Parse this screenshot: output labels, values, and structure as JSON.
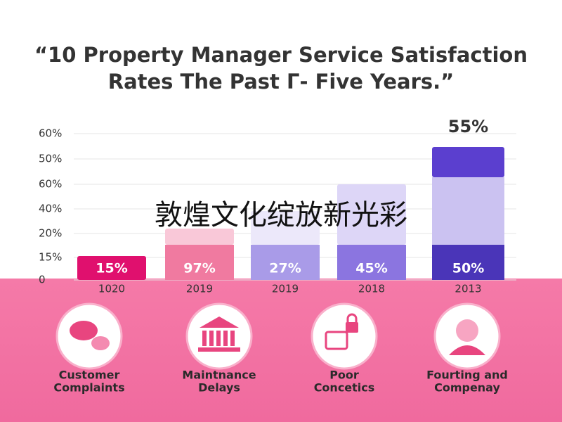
{
  "title": [
    "“10 Property Manager Service Satisfaction",
    "Rates The Past Γ- Five Years.”"
  ],
  "axis_labels": [
    "60%",
    "50%",
    "60%",
    "40%",
    "20%",
    "15%",
    "0"
  ],
  "bars": [
    {
      "label": "15%",
      "year": "1020"
    },
    {
      "label": "97%",
      "year": "2019"
    },
    {
      "label": "27%",
      "year": "2019"
    },
    {
      "label": "45%",
      "year": "2018"
    },
    {
      "label": "50%",
      "year": "2013",
      "top_label": "55%"
    }
  ],
  "cards": [
    {
      "caption": [
        "Customer",
        "Complaints"
      ]
    },
    {
      "caption": [
        "Maintnance",
        "Delays"
      ]
    },
    {
      "caption": [
        "Poor",
        "Concetics"
      ]
    },
    {
      "caption": [
        "Fourting and",
        "Compenay"
      ]
    }
  ],
  "overlay": "敦煌文化绽放新光彩"
}
